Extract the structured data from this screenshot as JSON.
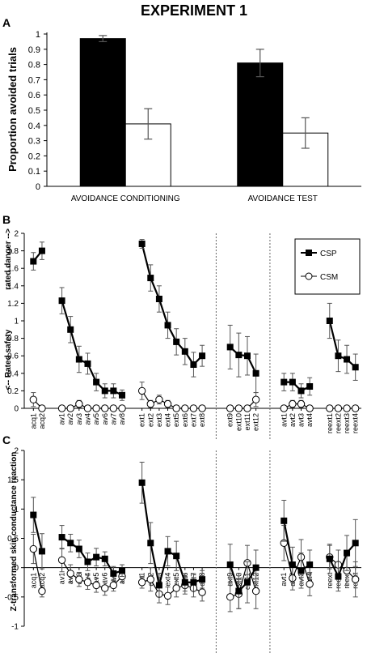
{
  "figure_title": "EXPERIMENT 1",
  "chart_data": [
    {
      "panel": "A",
      "type": "bar",
      "ylabel": "Proportion avoided trials",
      "xlabel": "",
      "ylim": [
        0,
        1
      ],
      "yticks": [
        "0",
        "0.1",
        "0.2",
        "0.3",
        "0.4",
        "0.5",
        "0.6",
        "0.7",
        "0.8",
        "0.9",
        "1"
      ],
      "categories": [
        "AVOIDANCE CONDITIONING",
        "AVOIDANCE TEST"
      ],
      "series": [
        {
          "fill": "#000000",
          "values": [
            0.97,
            0.81
          ],
          "errors": [
            0.02,
            0.09
          ]
        },
        {
          "fill": "#ffffff",
          "values": [
            0.41,
            0.35
          ],
          "errors": [
            0.1,
            0.1
          ]
        }
      ],
      "grid": false
    },
    {
      "panel": "B",
      "type": "line",
      "ylabel_top": "rated danger -->",
      "ylabel_bottom": "<-- Rated safety",
      "ylim": [
        0,
        2
      ],
      "yticks": [
        "0",
        "0.2",
        "0.4",
        "0.6",
        "0.8",
        "1",
        "1.2",
        "1.4",
        "1.6",
        "1.8",
        "2"
      ],
      "legend": {
        "position": "top-right",
        "entries": [
          "CSP",
          "CSM"
        ]
      },
      "groups": [
        {
          "labels": [
            "acq1",
            "acq2"
          ],
          "CSP": [
            1.68,
            1.8
          ],
          "CSP_err": [
            0.1,
            0.1
          ],
          "CSM": [
            0.1,
            0.0
          ],
          "CSM_err": [
            0.08,
            0.02
          ]
        },
        {
          "labels": [
            "av1",
            "av2",
            "av3",
            "av4",
            "av5",
            "av6",
            "av7",
            "av8"
          ],
          "CSP": [
            1.23,
            0.9,
            0.56,
            0.51,
            0.3,
            0.2,
            0.2,
            0.15
          ],
          "CSP_err": [
            0.15,
            0.15,
            0.15,
            0.12,
            0.1,
            0.08,
            0.08,
            0.06
          ],
          "CSM": [
            0.0,
            0.0,
            0.05,
            0.0,
            0.0,
            0.0,
            0.0,
            0.0
          ],
          "CSM_err": [
            0.02,
            0.02,
            0.04,
            0.02,
            0.02,
            0.02,
            0.02,
            0.02
          ]
        },
        {
          "labels": [
            "ext1",
            "ext2",
            "ext3",
            "ext4",
            "ext5",
            "ext6",
            "ext7",
            "ext8"
          ],
          "CSP": [
            1.88,
            1.49,
            1.25,
            0.95,
            0.76,
            0.65,
            0.5,
            0.6
          ],
          "CSP_err": [
            0.05,
            0.15,
            0.15,
            0.15,
            0.15,
            0.15,
            0.14,
            0.12
          ],
          "CSM": [
            0.2,
            0.05,
            0.1,
            0.05,
            0.0,
            0.0,
            0.0,
            0.0
          ],
          "CSM_err": [
            0.1,
            0.04,
            0.05,
            0.04,
            0.02,
            0.02,
            0.02,
            0.02
          ]
        },
        {
          "labels": [
            "ext9",
            "ext10",
            "ext11",
            "ext12"
          ],
          "CSP": [
            0.7,
            0.61,
            0.6,
            0.4
          ],
          "CSP_err": [
            0.25,
            0.25,
            0.22,
            0.22
          ],
          "CSM": [
            0.0,
            0.0,
            0.0,
            0.1
          ],
          "CSM_err": [
            0.02,
            0.02,
            0.02,
            0.08
          ]
        },
        {
          "labels": [
            "avt1",
            "avt2",
            "avt3",
            "avt4"
          ],
          "CSP": [
            0.3,
            0.3,
            0.2,
            0.25
          ],
          "CSP_err": [
            0.1,
            0.1,
            0.08,
            0.1
          ],
          "CSM": [
            0.0,
            0.05,
            0.05,
            0.0
          ],
          "CSM_err": [
            0.02,
            0.04,
            0.04,
            0.02
          ]
        },
        {
          "labels": [
            "reext1",
            "reext2",
            "reext3",
            "reext4"
          ],
          "CSP": [
            1.0,
            0.6,
            0.56,
            0.47
          ],
          "CSP_err": [
            0.2,
            0.18,
            0.16,
            0.15
          ],
          "CSM": [
            0.0,
            0.0,
            0.0,
            0.0
          ],
          "CSM_err": [
            0.02,
            0.02,
            0.02,
            0.02
          ]
        }
      ],
      "separators_after_group": [
        2,
        3
      ]
    },
    {
      "panel": "C",
      "type": "line",
      "ylabel": "Z-transformed skin conductance reaction",
      "ylim": [
        -1,
        2
      ],
      "yticks": [
        "-1",
        "-0.5",
        "0",
        "0.5",
        "1",
        "1.5",
        "2"
      ],
      "groups": [
        {
          "labels": [
            "acq1",
            "acq2"
          ],
          "CSP": [
            0.9,
            0.28
          ],
          "CSP_err": [
            0.3,
            0.3
          ],
          "CSM": [
            0.32,
            -0.4
          ],
          "CSM_err": [
            0.25,
            0.1
          ]
        },
        {
          "labels": [
            "av1",
            "av2",
            "av3",
            "av4",
            "av5",
            "av6",
            "av7",
            "av8"
          ],
          "CSP": [
            0.52,
            0.42,
            0.32,
            0.1,
            0.18,
            0.15,
            -0.1,
            -0.05
          ],
          "CSP_err": [
            0.2,
            0.15,
            0.15,
            0.15,
            0.15,
            0.12,
            0.12,
            0.1
          ],
          "CSM": [
            0.13,
            -0.1,
            -0.2,
            -0.25,
            -0.3,
            -0.35,
            -0.3,
            -0.15
          ],
          "CSM_err": [
            0.2,
            0.15,
            0.12,
            0.12,
            0.12,
            0.12,
            0.1,
            0.1
          ]
        },
        {
          "labels": [
            "ext1",
            "ext2",
            "ext3",
            "ext4",
            "ext5",
            "ext6",
            "ext7",
            "ext8"
          ],
          "CSP": [
            1.45,
            0.42,
            -0.3,
            0.28,
            0.2,
            -0.25,
            -0.25,
            -0.2
          ],
          "CSP_err": [
            0.35,
            0.35,
            0.2,
            0.25,
            0.25,
            0.15,
            0.15,
            0.15
          ],
          "CSM": [
            -0.25,
            -0.2,
            -0.45,
            -0.48,
            -0.35,
            -0.3,
            -0.35,
            -0.42
          ],
          "CSM_err": [
            0.1,
            0.2,
            0.15,
            0.15,
            0.15,
            0.15,
            0.15,
            0.15
          ]
        },
        {
          "labels": [
            "ext9",
            "ext10",
            "ext11",
            "ext12"
          ],
          "CSP": [
            0.05,
            -0.4,
            -0.25,
            0.0
          ],
          "CSP_err": [
            0.35,
            0.3,
            0.35,
            0.3
          ],
          "CSM": [
            -0.5,
            -0.45,
            0.08,
            -0.4
          ],
          "CSM_err": [
            0.25,
            0.25,
            0.3,
            0.3
          ]
        },
        {
          "labels": [
            "avt1",
            "avt2",
            "avt3",
            "avt4"
          ],
          "CSP": [
            0.8,
            0.05,
            -0.05,
            0.05
          ],
          "CSP_err": [
            0.35,
            0.3,
            0.3,
            0.25
          ],
          "CSM": [
            0.42,
            -0.18,
            0.18,
            -0.28
          ],
          "CSM_err": [
            0.3,
            0.2,
            0.3,
            0.2
          ]
        },
        {
          "labels": [
            "reext",
            "reext",
            "reext",
            "reext"
          ],
          "CSP": [
            0.15,
            -0.15,
            0.25,
            0.42
          ],
          "CSP_err": [
            0.25,
            0.25,
            0.3,
            0.4
          ],
          "CSM": [
            0.18,
            0.05,
            -0.05,
            -0.2
          ],
          "CSM_err": [
            0.2,
            0.25,
            0.25,
            0.3
          ]
        }
      ],
      "separators_after_group": [
        2,
        3
      ]
    }
  ]
}
